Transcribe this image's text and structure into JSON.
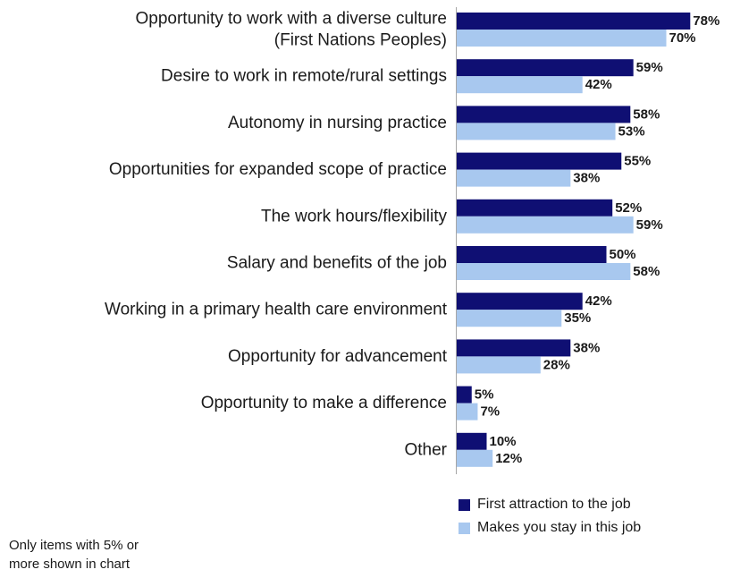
{
  "chart_data": {
    "type": "bar",
    "orientation": "horizontal",
    "categories": [
      [
        "Opportunity to work with a diverse culture",
        "(First Nations Peoples)"
      ],
      [
        "Desire to work in remote/rural settings"
      ],
      [
        "Autonomy in nursing practice"
      ],
      [
        "Opportunities for expanded scope of practice"
      ],
      [
        "The work hours/flexibility"
      ],
      [
        "Salary and benefits of the job"
      ],
      [
        "Working in a primary health care environment"
      ],
      [
        "Opportunity for advancement"
      ],
      [
        "Opportunity to make a difference"
      ],
      [
        "Other"
      ]
    ],
    "series": [
      {
        "name": "First attraction to the job",
        "color": "#0f0f73",
        "values": [
          78,
          59,
          58,
          55,
          52,
          50,
          42,
          38,
          5,
          10
        ]
      },
      {
        "name": "Makes you stay in this job",
        "color": "#a8c8ef",
        "values": [
          70,
          42,
          53,
          38,
          59,
          58,
          35,
          28,
          7,
          12
        ]
      }
    ],
    "value_suffix": "%",
    "xlim": [
      0,
      80
    ],
    "grid": false,
    "legend_position": "bottom-right"
  },
  "footnote": [
    "Only items with 5% or",
    "more shown in chart"
  ]
}
